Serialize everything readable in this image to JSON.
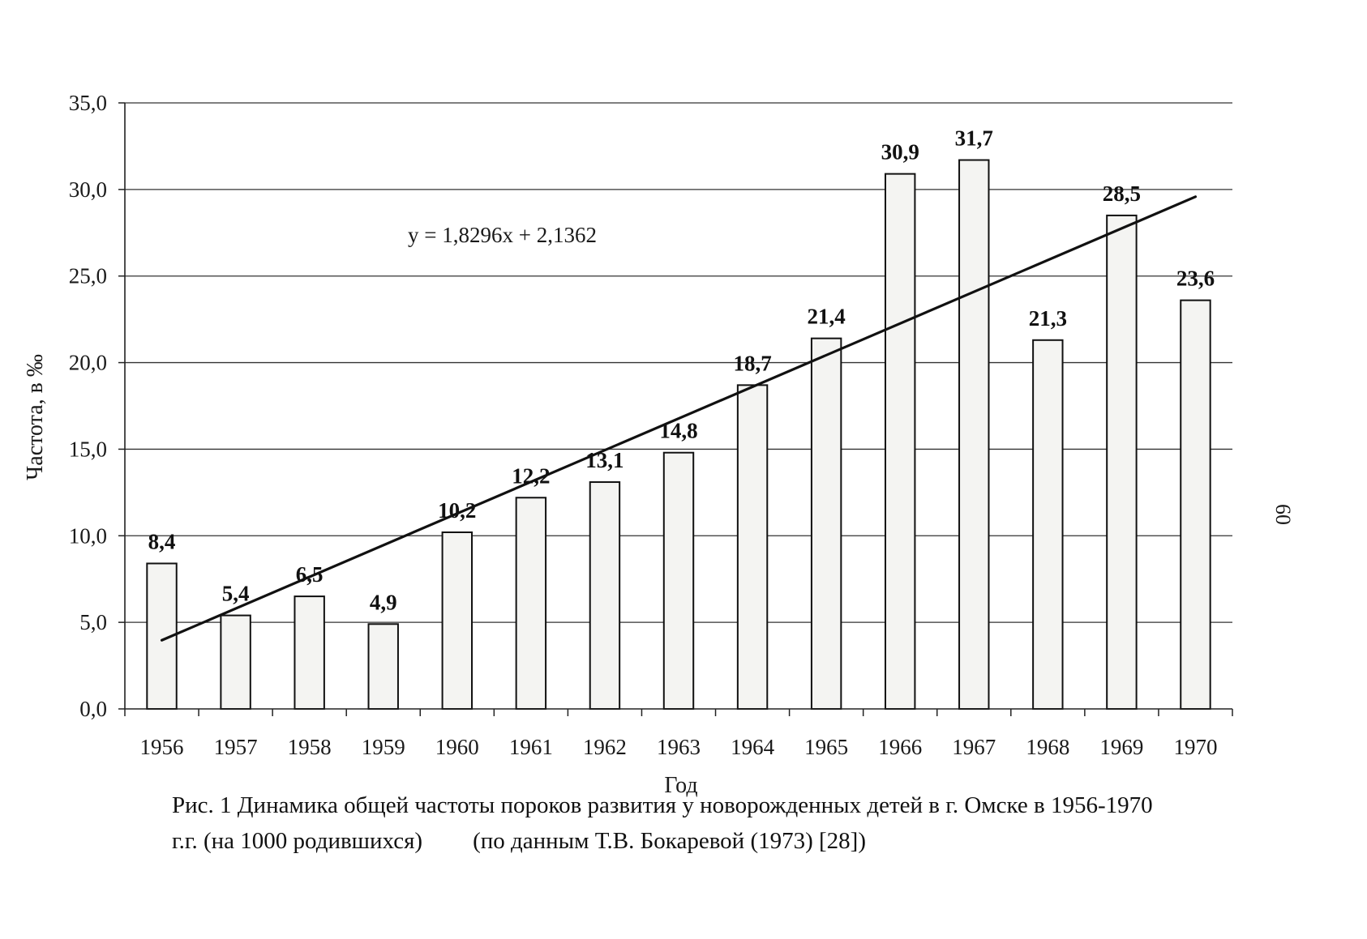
{
  "chart_data": {
    "type": "bar",
    "categories": [
      "1956",
      "1957",
      "1958",
      "1959",
      "1960",
      "1961",
      "1962",
      "1963",
      "1964",
      "1965",
      "1966",
      "1967",
      "1968",
      "1969",
      "1970"
    ],
    "values": [
      8.4,
      5.4,
      6.5,
      4.9,
      10.2,
      12.2,
      13.1,
      14.8,
      18.7,
      21.4,
      30.9,
      31.7,
      21.3,
      28.5,
      23.6
    ],
    "data_labels": [
      "8,4",
      "5,4",
      "6,5",
      "4,9",
      "10,2",
      "12,2",
      "13,1",
      "14,8",
      "18,7",
      "21,4",
      "30,9",
      "31,7",
      "21,3",
      "28,5",
      "23,6"
    ],
    "xlabel": "Год",
    "ylabel": "Частота, в ‰",
    "ylim": [
      0,
      35
    ],
    "yticks": [
      0,
      5,
      10,
      15,
      20,
      25,
      30,
      35
    ],
    "ytick_labels": [
      "0,0",
      "5,0",
      "10,0",
      "15,0",
      "20,0",
      "25,0",
      "30,0",
      "35,0"
    ],
    "grid": true,
    "trendline": {
      "type": "linear",
      "slope": 1.8296,
      "intercept": 2.1362,
      "equation_label": "y = 1,8296x + 2,1362"
    },
    "bar_fill": "#f4f4f2",
    "bar_stroke": "#111111"
  },
  "caption": {
    "line1": "Рис. 1   Динамика общей частоты пороков развития у новорожденных детей в г. Омске в 1956-1970",
    "line2_a": "г.г. (на 1000 родившихся)",
    "line2_b": "(по данным Т.В. Бокаревой (1973) [28])"
  },
  "page_number": "60"
}
